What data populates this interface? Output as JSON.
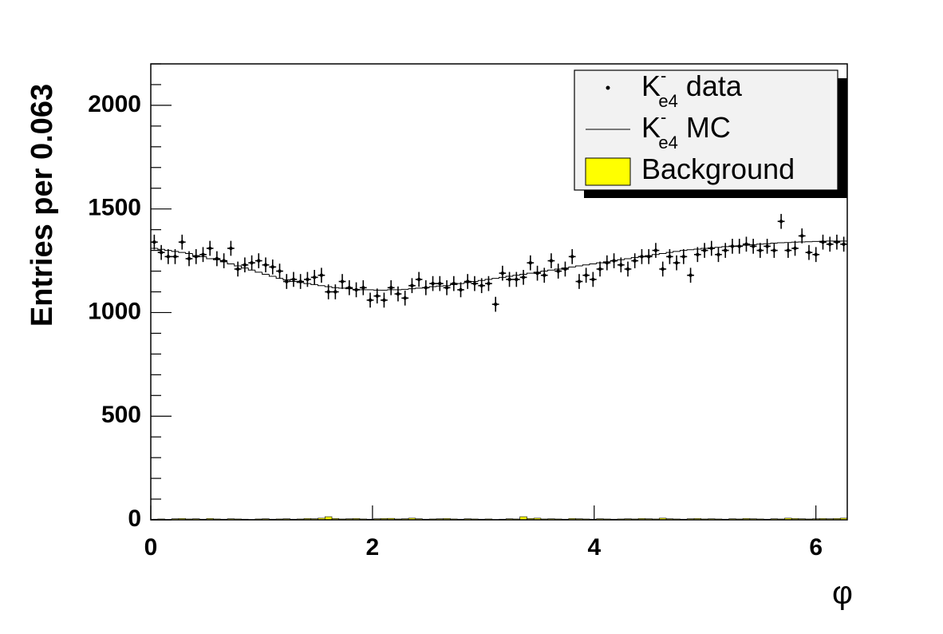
{
  "chart_data": {
    "type": "histogram",
    "xlabel": "φ",
    "ylabel": "Entries per 0.063",
    "xlim": [
      0,
      6.283
    ],
    "ylim": [
      0,
      2200
    ],
    "xticks": [
      0,
      2,
      4,
      6
    ],
    "yticks": [
      0,
      500,
      1000,
      1500,
      2000
    ],
    "yminorticks": [
      100,
      200,
      300,
      400,
      600,
      700,
      800,
      900,
      1100,
      1200,
      1300,
      1400,
      1600,
      1700,
      1800,
      1900,
      2100,
      2200
    ],
    "bins": [
      0,
      0.063,
      0.126,
      0.188,
      0.251,
      0.314,
      0.377,
      0.44,
      0.503,
      0.565,
      0.628,
      0.691,
      0.754,
      0.817,
      0.88,
      0.942,
      1.005,
      1.068,
      1.131,
      1.194,
      1.257,
      1.319,
      1.382,
      1.445,
      1.508,
      1.571,
      1.634,
      1.696,
      1.759,
      1.822,
      1.885,
      1.948,
      2.011,
      2.073,
      2.136,
      2.199,
      2.262,
      2.325,
      2.388,
      2.45,
      2.513,
      2.576,
      2.639,
      2.702,
      2.765,
      2.827,
      2.89,
      2.953,
      3.016,
      3.079,
      3.142,
      3.204,
      3.267,
      3.33,
      3.393,
      3.456,
      3.519,
      3.581,
      3.644,
      3.707,
      3.77,
      3.833,
      3.896,
      3.958,
      4.021,
      4.084,
      4.147,
      4.21,
      4.273,
      4.335,
      4.398,
      4.461,
      4.524,
      4.587,
      4.65,
      4.712,
      4.775,
      4.838,
      4.901,
      4.964,
      5.027,
      5.089,
      5.152,
      5.215,
      5.278,
      5.341,
      5.404,
      5.466,
      5.529,
      5.592,
      5.655,
      5.718,
      5.781,
      5.843,
      5.906,
      5.969,
      6.032,
      6.095,
      6.158,
      6.22,
      6.283
    ],
    "series": [
      {
        "name": {
          "base": "K",
          "sup": "-",
          "sub": "e4",
          "rest": " data"
        },
        "style": "points",
        "color": "#000000",
        "values": [
          1340,
          1290,
          1270,
          1270,
          1340,
          1260,
          1270,
          1280,
          1310,
          1260,
          1250,
          1310,
          1210,
          1230,
          1240,
          1250,
          1230,
          1220,
          1200,
          1150,
          1160,
          1150,
          1160,
          1170,
          1180,
          1100,
          1100,
          1150,
          1120,
          1110,
          1120,
          1060,
          1080,
          1060,
          1120,
          1090,
          1070,
          1130,
          1160,
          1120,
          1140,
          1140,
          1120,
          1140,
          1110,
          1150,
          1140,
          1130,
          1140,
          1040,
          1190,
          1160,
          1160,
          1170,
          1240,
          1190,
          1180,
          1250,
          1200,
          1210,
          1270,
          1150,
          1180,
          1160,
          1210,
          1240,
          1250,
          1230,
          1210,
          1250,
          1270,
          1270,
          1300,
          1210,
          1270,
          1240,
          1270,
          1180,
          1280,
          1300,
          1310,
          1280,
          1300,
          1320,
          1320,
          1330,
          1320,
          1300,
          1320,
          1300,
          1440,
          1300,
          1310,
          1370,
          1290,
          1280,
          1340,
          1330,
          1340,
          1330
        ],
        "errors": [
          36,
          36,
          36,
          36,
          36,
          36,
          36,
          36,
          36,
          36,
          36,
          36,
          36,
          36,
          36,
          36,
          36,
          36,
          36,
          36,
          36,
          36,
          36,
          36,
          36,
          36,
          36,
          36,
          36,
          36,
          36,
          36,
          36,
          36,
          36,
          36,
          36,
          36,
          36,
          36,
          36,
          36,
          36,
          36,
          36,
          36,
          36,
          36,
          36,
          36,
          36,
          36,
          36,
          36,
          36,
          36,
          36,
          36,
          36,
          36,
          36,
          36,
          36,
          36,
          36,
          36,
          36,
          36,
          36,
          36,
          36,
          36,
          36,
          36,
          36,
          36,
          36,
          36,
          36,
          36,
          36,
          36,
          36,
          36,
          36,
          36,
          36,
          36,
          36,
          36,
          36,
          36,
          36,
          36,
          36,
          36,
          36,
          36,
          36,
          36
        ]
      },
      {
        "name": {
          "base": "K",
          "sup": "-",
          "sub": "e4",
          "rest": " MC"
        },
        "style": "step",
        "color": "#000000",
        "values": [
          1310,
          1305,
          1300,
          1295,
          1290,
          1285,
          1275,
          1270,
          1260,
          1255,
          1245,
          1235,
          1225,
          1215,
          1205,
          1195,
          1185,
          1175,
          1165,
          1158,
          1150,
          1145,
          1140,
          1135,
          1130,
          1125,
          1120,
          1118,
          1115,
          1112,
          1110,
          1110,
          1108,
          1108,
          1110,
          1110,
          1112,
          1115,
          1118,
          1120,
          1125,
          1128,
          1130,
          1135,
          1140,
          1145,
          1150,
          1155,
          1160,
          1165,
          1170,
          1175,
          1180,
          1185,
          1190,
          1195,
          1200,
          1205,
          1210,
          1215,
          1220,
          1225,
          1230,
          1235,
          1240,
          1245,
          1250,
          1255,
          1260,
          1265,
          1270,
          1275,
          1280,
          1285,
          1290,
          1295,
          1300,
          1303,
          1306,
          1310,
          1312,
          1315,
          1318,
          1320,
          1322,
          1325,
          1328,
          1330,
          1332,
          1335,
          1337,
          1338,
          1340,
          1341,
          1342,
          1343,
          1344,
          1345,
          1345,
          1345
        ]
      },
      {
        "name": "Background",
        "style": "filled",
        "color": "#ffff00",
        "values": [
          3,
          4,
          2,
          5,
          6,
          4,
          5,
          3,
          6,
          4,
          3,
          5,
          4,
          3,
          2,
          4,
          5,
          3,
          4,
          5,
          3,
          4,
          6,
          5,
          8,
          15,
          6,
          4,
          5,
          6,
          4,
          3,
          5,
          6,
          7,
          4,
          5,
          8,
          5,
          3,
          4,
          5,
          6,
          4,
          3,
          5,
          4,
          3,
          4,
          2,
          3,
          5,
          4,
          15,
          6,
          8,
          4,
          5,
          4,
          3,
          6,
          5,
          4,
          3,
          5,
          4,
          3,
          4,
          5,
          4,
          6,
          5,
          4,
          8,
          5,
          4,
          3,
          5,
          6,
          4,
          5,
          4,
          3,
          5,
          4,
          6,
          5,
          4,
          3,
          5,
          4,
          8,
          6,
          5,
          4,
          5,
          6,
          5,
          6,
          8
        ]
      }
    ]
  }
}
